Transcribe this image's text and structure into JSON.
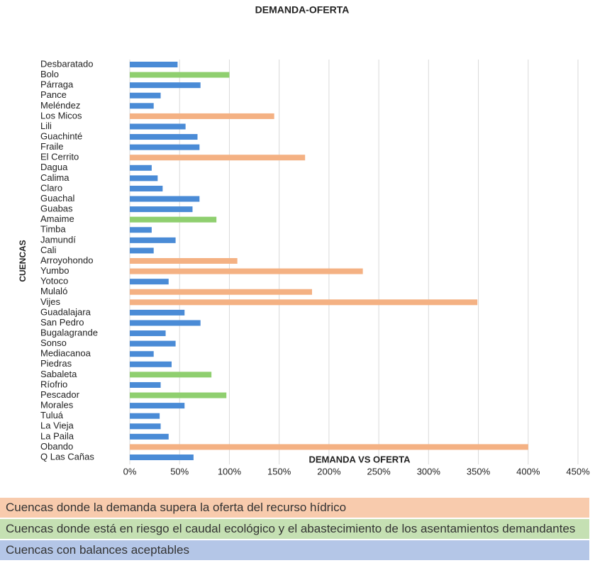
{
  "chart_data": {
    "type": "barh",
    "title": "DEMANDA-OFERTA",
    "y_axis_label": "CUENCAS",
    "x_axis_label": "DEMANDA VS OFERTA",
    "categories": [
      "Desbaratado",
      "Bolo",
      "Párraga",
      "Pance",
      "Meléndez",
      "Los Micos",
      "Lili",
      "Guachinté",
      "Fraile",
      "El Cerrito",
      "Dagua",
      "Calima",
      "Claro",
      "Guachal",
      "Guabas",
      "Amaime",
      "Timba",
      "Jamundí",
      "Cali",
      "Arroyohondo",
      "Yumbo",
      "Yotoco",
      "Mulaló",
      "Vijes",
      "Guadalajara",
      "San Pedro",
      "Bugalagrande",
      "Sonso",
      "Mediacanoa",
      "Piedras",
      "Sabaleta",
      "Ríofrio",
      "Pescador",
      "Morales",
      "Tuluá",
      "La Vieja",
      "La Paila",
      "Obando",
      "Q Las Cañas"
    ],
    "values": [
      48,
      100,
      71,
      31,
      24,
      145,
      56,
      68,
      70,
      176,
      22,
      28,
      33,
      70,
      63,
      87,
      22,
      46,
      24,
      108,
      234,
      39,
      183,
      349,
      55,
      71,
      36,
      46,
      24,
      42,
      82,
      31,
      97,
      55,
      30,
      31,
      39,
      400,
      64
    ],
    "colors": [
      "#4a8bd6",
      "#8fcf6f",
      "#4a8bd6",
      "#4a8bd6",
      "#4a8bd6",
      "#f4b183",
      "#4a8bd6",
      "#4a8bd6",
      "#4a8bd6",
      "#f4b183",
      "#4a8bd6",
      "#4a8bd6",
      "#4a8bd6",
      "#4a8bd6",
      "#4a8bd6",
      "#8fcf6f",
      "#4a8bd6",
      "#4a8bd6",
      "#4a8bd6",
      "#f4b183",
      "#f4b183",
      "#4a8bd6",
      "#f4b183",
      "#f4b183",
      "#4a8bd6",
      "#4a8bd6",
      "#4a8bd6",
      "#4a8bd6",
      "#4a8bd6",
      "#4a8bd6",
      "#8fcf6f",
      "#4a8bd6",
      "#8fcf6f",
      "#4a8bd6",
      "#4a8bd6",
      "#4a8bd6",
      "#4a8bd6",
      "#f4b183",
      "#4a8bd6"
    ],
    "xlim": [
      0,
      450
    ],
    "xticks": [
      {
        "value": 0,
        "label": "0%"
      },
      {
        "value": 50,
        "label": "50%"
      },
      {
        "value": 100,
        "label": "100%"
      },
      {
        "value": 150,
        "label": "150%"
      },
      {
        "value": 200,
        "label": "200%"
      },
      {
        "value": 250,
        "label": "250%"
      },
      {
        "value": 300,
        "label": "300%"
      },
      {
        "value": 350,
        "label": "350%"
      },
      {
        "value": 400,
        "label": "400%"
      },
      {
        "value": 450,
        "label": "450%"
      }
    ],
    "grid": true,
    "legend": [
      {
        "label": "Cuencas donde la demanda supera la oferta del recurso hídrico",
        "color": "#f8cbad"
      },
      {
        "label": "Cuencas donde está en riesgo el caudal ecológico y el abastecimiento de los asentamientos demandantes",
        "color": "#c5e0b3"
      },
      {
        "label": "Cuencas con balances aceptables",
        "color": "#b4c6e7"
      }
    ]
  }
}
